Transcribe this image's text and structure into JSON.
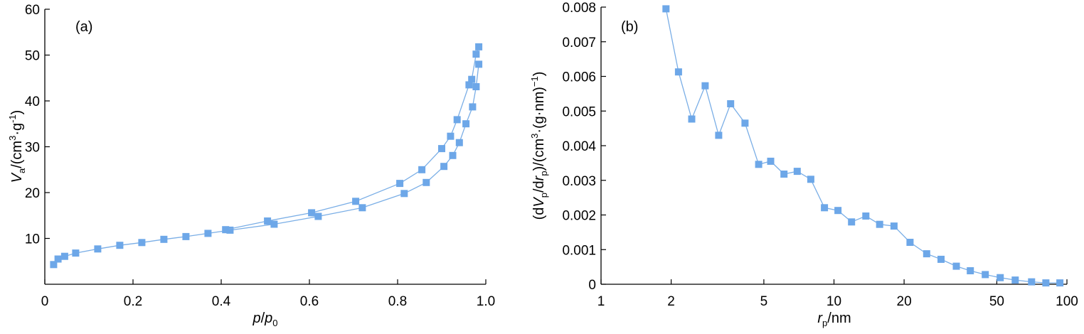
{
  "colors": {
    "series": "#6da7e8",
    "line": "#7aaee6",
    "axis": "#000000"
  },
  "chart_data": [
    {
      "type": "line",
      "panel_label": "(a)",
      "xlabel": {
        "main": "p",
        "sep": "/",
        "main2": "p",
        "sub": "0"
      },
      "ylabel": {
        "V": "V",
        "sub": "a",
        "rest1": "/(cm",
        "sup1": "3",
        "dot": "·g",
        "sup2": "-1",
        "close": ")"
      },
      "xlim": [
        0,
        1.0
      ],
      "ylim": [
        0,
        60
      ],
      "x_ticks": [
        0,
        0.2,
        0.4,
        0.6,
        0.8,
        1.0
      ],
      "x_tick_labels": [
        "0",
        "0.2",
        "0.4",
        "0.6",
        "0.8",
        "1.0"
      ],
      "y_ticks": [
        10,
        20,
        30,
        40,
        50,
        60
      ],
      "y_tick_labels": [
        "10",
        "20",
        "30",
        "40",
        "50",
        "60"
      ],
      "series": [
        {
          "x": [
            0.02,
            0.03,
            0.045,
            0.07,
            0.12,
            0.17,
            0.22,
            0.27,
            0.32,
            0.37,
            0.42,
            0.52,
            0.62,
            0.72,
            0.815,
            0.865,
            0.905,
            0.925,
            0.94,
            0.955,
            0.97,
            0.978,
            0.984
          ],
          "y": [
            4.3,
            5.5,
            6.1,
            6.8,
            7.7,
            8.5,
            9.1,
            9.8,
            10.4,
            11.1,
            11.8,
            13.1,
            14.8,
            16.7,
            19.8,
            22.2,
            25.7,
            28.1,
            30.9,
            35.0,
            38.7,
            43.1,
            48.0
          ]
        },
        {
          "x": [
            0.984,
            0.978,
            0.968,
            0.962,
            0.935,
            0.92,
            0.9,
            0.855,
            0.805,
            0.705,
            0.605,
            0.505,
            0.41
          ],
          "y": [
            51.8,
            50.2,
            44.7,
            43.5,
            35.9,
            32.3,
            29.6,
            25.0,
            22.0,
            18.1,
            15.6,
            13.8,
            11.9
          ]
        }
      ]
    },
    {
      "type": "line",
      "panel_label": "(b)",
      "xlabel": {
        "r": "r",
        "sub": "p",
        "rest": "/nm"
      },
      "ylabel": {
        "open": "(d",
        "V": "V",
        "sub1": "p",
        "mid": "/d",
        "r": "r",
        "sub2": "p",
        "rest1": ")/(cm",
        "sup1": "3",
        "rest2": "·(g·nm)",
        "sup2": "−1",
        "close": ")"
      },
      "xscale": "log",
      "xlim": [
        1,
        100
      ],
      "ylim": [
        0,
        0.008
      ],
      "x_ticks": [
        1,
        2,
        5,
        10,
        20,
        50,
        100
      ],
      "x_tick_labels": [
        "1",
        "2",
        "5",
        "10",
        "20",
        "50",
        "100"
      ],
      "y_ticks": [
        0,
        0.001,
        0.002,
        0.003,
        0.004,
        0.005,
        0.006,
        0.007,
        0.008
      ],
      "y_tick_labels": [
        "0",
        "0.001",
        "0.002",
        "0.003",
        "0.004",
        "0.005",
        "0.006",
        "0.007",
        "0.008"
      ],
      "series": [
        {
          "x": [
            1.9,
            2.15,
            2.45,
            2.8,
            3.2,
            3.6,
            4.15,
            4.75,
            5.35,
            6.1,
            6.95,
            7.95,
            9.1,
            10.4,
            11.9,
            13.7,
            15.7,
            18.1,
            21.2,
            25.0,
            28.8,
            33.5,
            38.5,
            44.6,
            51.7,
            60.0,
            70.5,
            81.2,
            93.3
          ],
          "y": [
            0.00795,
            0.00613,
            0.00477,
            0.00573,
            0.0043,
            0.00521,
            0.00465,
            0.00346,
            0.00355,
            0.00318,
            0.00326,
            0.00303,
            0.00221,
            0.00213,
            0.0018,
            0.00197,
            0.00173,
            0.00168,
            0.00121,
            0.00088,
            0.00072,
            0.00052,
            0.00039,
            0.00028,
            0.00019,
            0.00012,
            7e-05,
            4e-05,
            4e-05
          ]
        }
      ]
    }
  ]
}
